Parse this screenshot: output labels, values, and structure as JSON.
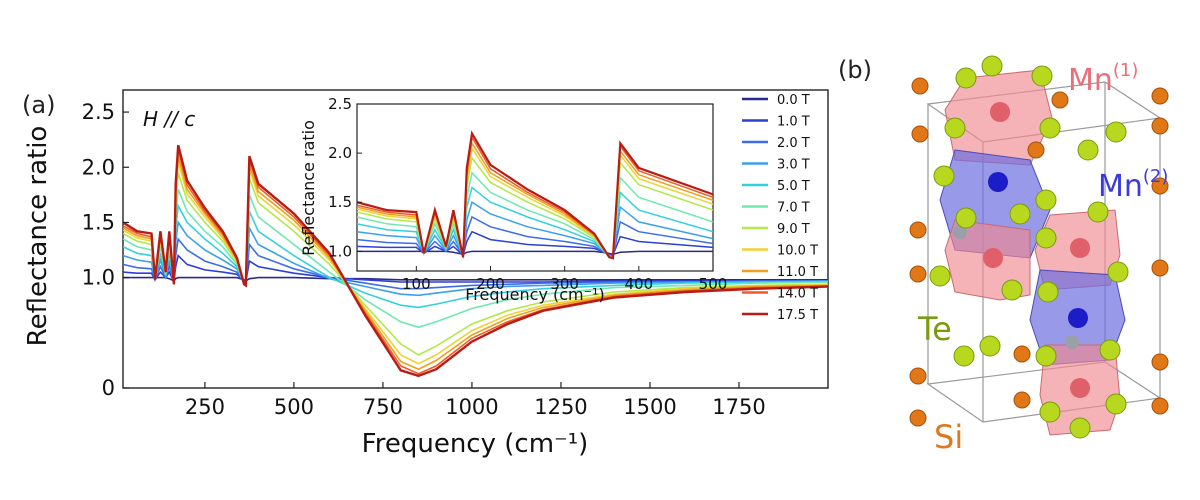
{
  "chart_data": [
    {
      "type": "line",
      "panel_label": "(a)",
      "annotation": "H // c",
      "xlabel": "Frequency (cm⁻¹)",
      "ylabel": "Reflectance ratio",
      "xlim": [
        20,
        2000
      ],
      "ylim": [
        0,
        2.7
      ],
      "xticks": [
        250,
        500,
        750,
        1000,
        1250,
        1500,
        1750
      ],
      "yticks": [
        0,
        1.0,
        1.5,
        2.0,
        2.5
      ],
      "ytick_labels": [
        "0",
        "1.0",
        "1.5",
        "2.0",
        "2.5"
      ],
      "legend_position": "right of inset",
      "x": [
        20,
        60,
        100,
        110,
        125,
        140,
        150,
        163,
        168,
        175,
        200,
        250,
        300,
        340,
        360,
        365,
        375,
        400,
        500,
        600,
        700,
        800,
        850,
        900,
        1000,
        1100,
        1200,
        1400,
        1600,
        1800,
        2000
      ],
      "series": [
        {
          "name": "0.0 T",
          "color": "#2a2a8c",
          "values": [
            1.0,
            1.0,
            1.0,
            1.0,
            1.0,
            1.0,
            0.99,
            0.97,
            0.99,
            1.0,
            1.0,
            1.0,
            1.0,
            1.0,
            0.98,
            0.97,
            0.99,
            1.0,
            1.0,
            0.99,
            0.99,
            0.98,
            0.98,
            0.98,
            0.98,
            0.98,
            0.98,
            0.98,
            0.98,
            0.98,
            0.98
          ]
        },
        {
          "name": "1.0 T",
          "color": "#2c3fd6",
          "values": [
            1.05,
            1.04,
            1.04,
            0.98,
            1.05,
            1.0,
            1.05,
            0.96,
            1.1,
            1.2,
            1.12,
            1.07,
            1.05,
            1.03,
            0.97,
            0.96,
            1.15,
            1.1,
            1.04,
            1.0,
            0.98,
            0.96,
            0.96,
            0.96,
            0.96,
            0.96,
            0.96,
            0.97,
            0.97,
            0.97,
            0.97
          ]
        },
        {
          "name": "2.0 T",
          "color": "#3d6ee8",
          "values": [
            1.12,
            1.09,
            1.08,
            0.98,
            1.1,
            1.0,
            1.1,
            0.96,
            1.2,
            1.35,
            1.25,
            1.15,
            1.1,
            1.05,
            0.96,
            0.95,
            1.3,
            1.2,
            1.08,
            1.0,
            0.95,
            0.9,
            0.9,
            0.91,
            0.93,
            0.94,
            0.95,
            0.96,
            0.96,
            0.97,
            0.97
          ]
        },
        {
          "name": "3.0 T",
          "color": "#3aa0ec",
          "values": [
            1.2,
            1.16,
            1.14,
            0.98,
            1.16,
            1.01,
            1.16,
            0.95,
            1.32,
            1.5,
            1.38,
            1.25,
            1.16,
            1.08,
            0.96,
            0.95,
            1.45,
            1.3,
            1.13,
            0.99,
            0.92,
            0.85,
            0.84,
            0.86,
            0.9,
            0.92,
            0.93,
            0.95,
            0.96,
            0.96,
            0.97
          ]
        },
        {
          "name": "5.0 T",
          "color": "#34d0e0",
          "values": [
            1.28,
            1.22,
            1.2,
            0.98,
            1.22,
            1.02,
            1.22,
            0.95,
            1.45,
            1.65,
            1.5,
            1.35,
            1.22,
            1.1,
            0.95,
            0.94,
            1.6,
            1.42,
            1.2,
            1.0,
            0.86,
            0.75,
            0.73,
            0.76,
            0.83,
            0.87,
            0.9,
            0.93,
            0.95,
            0.96,
            0.96
          ]
        },
        {
          "name": "7.0 T",
          "color": "#6fe8b0",
          "values": [
            1.35,
            1.28,
            1.25,
            0.98,
            1.28,
            1.03,
            1.28,
            0.95,
            1.55,
            1.8,
            1.6,
            1.42,
            1.28,
            1.12,
            0.95,
            0.94,
            1.75,
            1.55,
            1.3,
            1.05,
            0.8,
            0.6,
            0.55,
            0.6,
            0.72,
            0.8,
            0.85,
            0.91,
            0.93,
            0.95,
            0.96
          ]
        },
        {
          "name": "9.0 T",
          "color": "#b2e84a",
          "values": [
            1.4,
            1.33,
            1.3,
            0.98,
            1.33,
            1.04,
            1.33,
            0.94,
            1.65,
            1.95,
            1.7,
            1.5,
            1.33,
            1.14,
            0.94,
            0.93,
            1.9,
            1.68,
            1.42,
            1.12,
            0.75,
            0.4,
            0.3,
            0.38,
            0.58,
            0.7,
            0.78,
            0.87,
            0.91,
            0.93,
            0.94
          ]
        },
        {
          "name": "10.0 T",
          "color": "#f0d232",
          "values": [
            1.43,
            1.36,
            1.33,
            0.98,
            1.36,
            1.05,
            1.36,
            0.94,
            1.72,
            2.05,
            1.76,
            1.55,
            1.36,
            1.15,
            0.94,
            0.93,
            1.98,
            1.74,
            1.48,
            1.16,
            0.72,
            0.3,
            0.22,
            0.3,
            0.52,
            0.66,
            0.75,
            0.85,
            0.9,
            0.92,
            0.94
          ]
        },
        {
          "name": "11.0 T",
          "color": "#f0a020",
          "values": [
            1.45,
            1.38,
            1.35,
            0.98,
            1.38,
            1.05,
            1.38,
            0.94,
            1.76,
            2.1,
            1.8,
            1.58,
            1.38,
            1.16,
            0.94,
            0.93,
            2.02,
            1.78,
            1.52,
            1.18,
            0.7,
            0.24,
            0.17,
            0.25,
            0.48,
            0.63,
            0.73,
            0.84,
            0.89,
            0.92,
            0.93
          ]
        },
        {
          "name": "14.0 T",
          "color": "#f05a28",
          "values": [
            1.47,
            1.4,
            1.37,
            0.98,
            1.4,
            1.05,
            1.4,
            0.94,
            1.8,
            2.16,
            1.84,
            1.6,
            1.4,
            1.17,
            0.94,
            0.93,
            2.07,
            1.82,
            1.55,
            1.2,
            0.68,
            0.2,
            0.13,
            0.2,
            0.45,
            0.6,
            0.71,
            0.83,
            0.88,
            0.91,
            0.92
          ]
        },
        {
          "name": "17.5 T",
          "color": "#b81c14",
          "values": [
            1.5,
            1.42,
            1.4,
            0.98,
            1.42,
            1.05,
            1.42,
            0.94,
            1.85,
            2.2,
            1.88,
            1.63,
            1.42,
            1.18,
            0.94,
            0.93,
            2.1,
            1.85,
            1.58,
            1.22,
            0.66,
            0.16,
            0.11,
            0.17,
            0.42,
            0.58,
            0.7,
            0.82,
            0.87,
            0.9,
            0.92
          ]
        }
      ],
      "inset": {
        "xlabel": "Frequency (cm⁻¹)",
        "ylabel": "Reflectance ratio",
        "xlim": [
          20,
          500
        ],
        "ylim": [
          0.8,
          2.5
        ],
        "xticks": [
          100,
          200,
          300,
          400,
          500
        ],
        "yticks": [
          1.0,
          1.5,
          2.0,
          2.5
        ]
      }
    },
    {
      "type": "diagram",
      "panel_label": "(b)",
      "atom_labels": [
        {
          "text": "Mn",
          "sup": "(1)",
          "color": "#e8707a"
        },
        {
          "text": "Mn",
          "sup": "(2)",
          "color": "#3a3ae0"
        },
        {
          "text": "Te",
          "sup": "",
          "color": "#7a9a10"
        },
        {
          "text": "Si",
          "sup": "",
          "color": "#e07820"
        }
      ]
    }
  ]
}
